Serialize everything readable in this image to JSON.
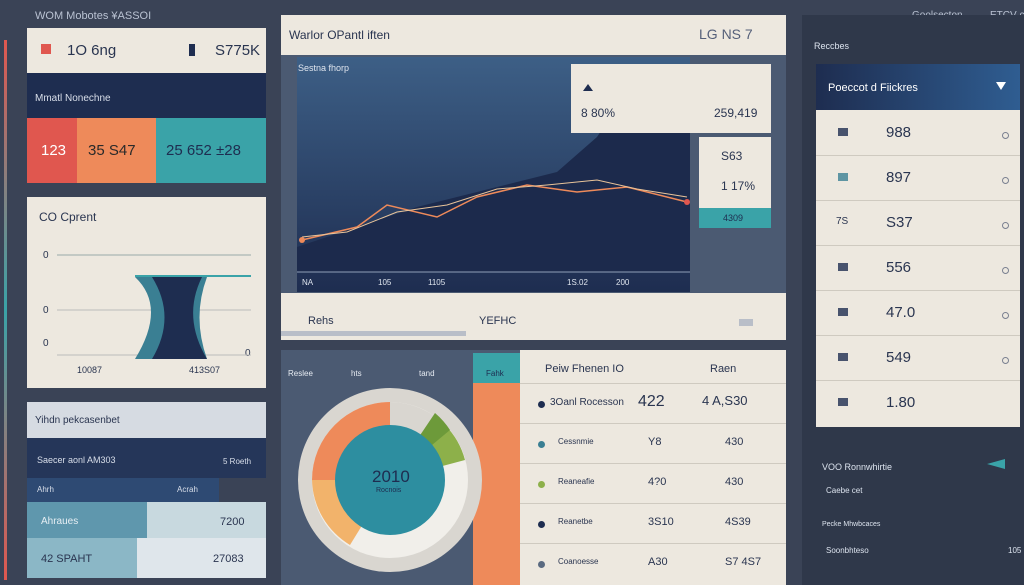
{
  "header": {
    "title": "WOM Mobotes ¥ASSOI",
    "right_1": "Goolsecton",
    "right_2": "ETCV cox"
  },
  "left": {
    "top_card": {
      "label": "1O 6ng",
      "value": "S775K"
    },
    "band_title": "Mmatl Nonechne",
    "tiles": [
      "123",
      "35 S47",
      "25 652 ±28"
    ],
    "chart_card": {
      "title": "CO Cprent",
      "y_labels": [
        "0",
        "0",
        "0"
      ],
      "corner_label": "0",
      "x_labels": [
        "10087",
        "413S07"
      ]
    },
    "list_title": "Yihdn pekcasenbet",
    "rows": [
      {
        "label": "Saecer aonl AM303",
        "value": "5 Roeth"
      },
      {
        "label": "Ahrh",
        "value": "Acrah"
      },
      {
        "label": "Ahraues",
        "value": "7200"
      },
      {
        "label": "42 SPAHT",
        "value": "27083"
      }
    ]
  },
  "main": {
    "title": "Warlor OPantl iften",
    "code": "LG NS 7",
    "chart_title": "Sestna fhorp",
    "x_labels": [
      "NA",
      "105",
      "1105",
      "1S.02",
      "200"
    ],
    "popup": {
      "a": "8 80%",
      "b": "259,419"
    },
    "stat": {
      "a": "S63",
      "b": "1 17%",
      "c": "4309"
    },
    "bar": {
      "left": "Rehs",
      "center": "YEFHC"
    }
  },
  "donut": {
    "tabs": [
      "Reslee",
      "hts",
      "tand",
      "Fahk"
    ],
    "value": "2010",
    "label": "Rocnois"
  },
  "table": {
    "headers": [
      "Peiw Fhenen IO",
      "Raen"
    ],
    "rows": [
      [
        "3Oanl Rocesson",
        "422",
        "4 A,S30"
      ],
      [
        "Cessnmie",
        "Y8",
        "430"
      ],
      [
        "Reaneafie",
        "4?0",
        "430"
      ],
      [
        "Reanetbe",
        "3S10",
        "4S39"
      ],
      [
        "Coanoesse",
        "A30",
        "S7 4S7"
      ]
    ]
  },
  "right": {
    "title": "Reccbes",
    "header": "Poeccot d Fiickres",
    "icon_text": "7S",
    "items": [
      "988",
      "897",
      "S37",
      "556",
      "47.0",
      "549",
      "1.80"
    ],
    "footer": {
      "title": "VOO Ronnwhirtie",
      "line_1": "Caebe cet",
      "line_2": "Pecke Mhwbcaces",
      "line_3": "Soonbhteso",
      "value": "105"
    }
  }
}
